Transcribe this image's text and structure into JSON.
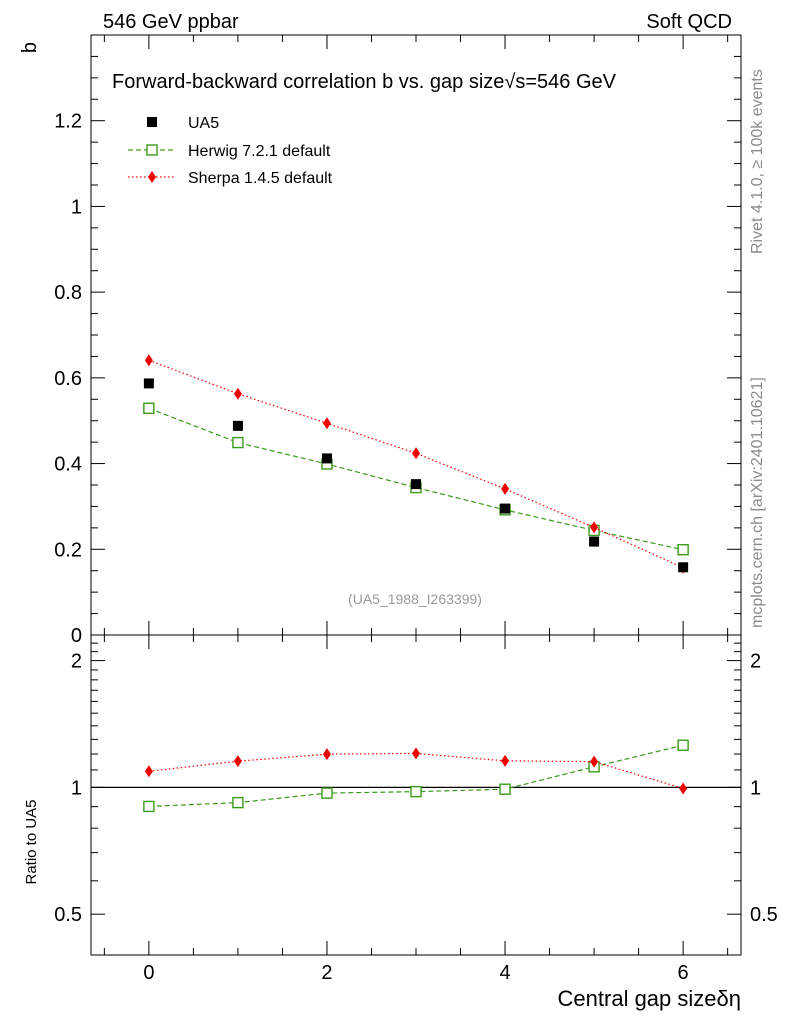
{
  "header": {
    "left": "546 GeV ppbar",
    "right": "Soft QCD"
  },
  "side_text": {
    "rivet": "Rivet 4.1.0, ≥ 100k events",
    "mcplots": "mcplots.cern.ch [arXiv:2401.10621]"
  },
  "colors": {
    "data": "#000000",
    "herwig": "#3a9a1a",
    "sherpa": "#ee0000"
  },
  "chart_data": [
    {
      "type": "scatter",
      "title": "Forward-backward correlation b  vs. gap size",
      "title_energy": "√s=546 GeV",
      "ylabel": "b",
      "ylim": [
        0,
        1.4
      ],
      "yticks": [
        0,
        0.2,
        0.4,
        0.6,
        0.8,
        1,
        1.2
      ],
      "ytick_labels": [
        "0",
        "0.2",
        "0.4",
        "0.6",
        "0.8",
        "1",
        "1.2"
      ],
      "annotation": "(UA5_1988_I263399)",
      "x": [
        0,
        1,
        2,
        3,
        4,
        5,
        6
      ],
      "series": [
        {
          "name": "UA5",
          "style": "data",
          "values": [
            0.587,
            0.488,
            0.412,
            0.352,
            0.295,
            0.218,
            0.158
          ]
        },
        {
          "name": "Herwig 7.2.1 default",
          "style": "herwig",
          "values": [
            0.529,
            0.449,
            0.399,
            0.344,
            0.292,
            0.244,
            0.199
          ]
        },
        {
          "name": "Sherpa 1.4.5 default",
          "style": "sherpa",
          "values": [
            0.641,
            0.563,
            0.494,
            0.424,
            0.341,
            0.251,
            0.157
          ]
        }
      ]
    },
    {
      "type": "line",
      "ylabel": "Ratio to UA5",
      "xlabel": "Central gap size",
      "xlabel_symbol": "δη",
      "ylim": [
        0.4,
        2.3
      ],
      "xlim": [
        -0.65,
        6.65
      ],
      "xticks": [
        0,
        2,
        4,
        6
      ],
      "xtick_labels": [
        "0",
        "2",
        "4",
        "6"
      ],
      "yticks": [
        0.5,
        1,
        2
      ],
      "ytick_labels": [
        "0.5",
        "1",
        "2"
      ],
      "x": [
        0,
        1,
        2,
        3,
        4,
        5,
        6
      ],
      "series": [
        {
          "name": "Herwig 7.2.1 default",
          "style": "herwig",
          "values": [
            0.901,
            0.92,
            0.969,
            0.977,
            0.99,
            1.119,
            1.259
          ]
        },
        {
          "name": "Sherpa 1.4.5 default",
          "style": "sherpa",
          "values": [
            1.092,
            1.154,
            1.199,
            1.204,
            1.156,
            1.151,
            0.994
          ]
        }
      ]
    }
  ]
}
